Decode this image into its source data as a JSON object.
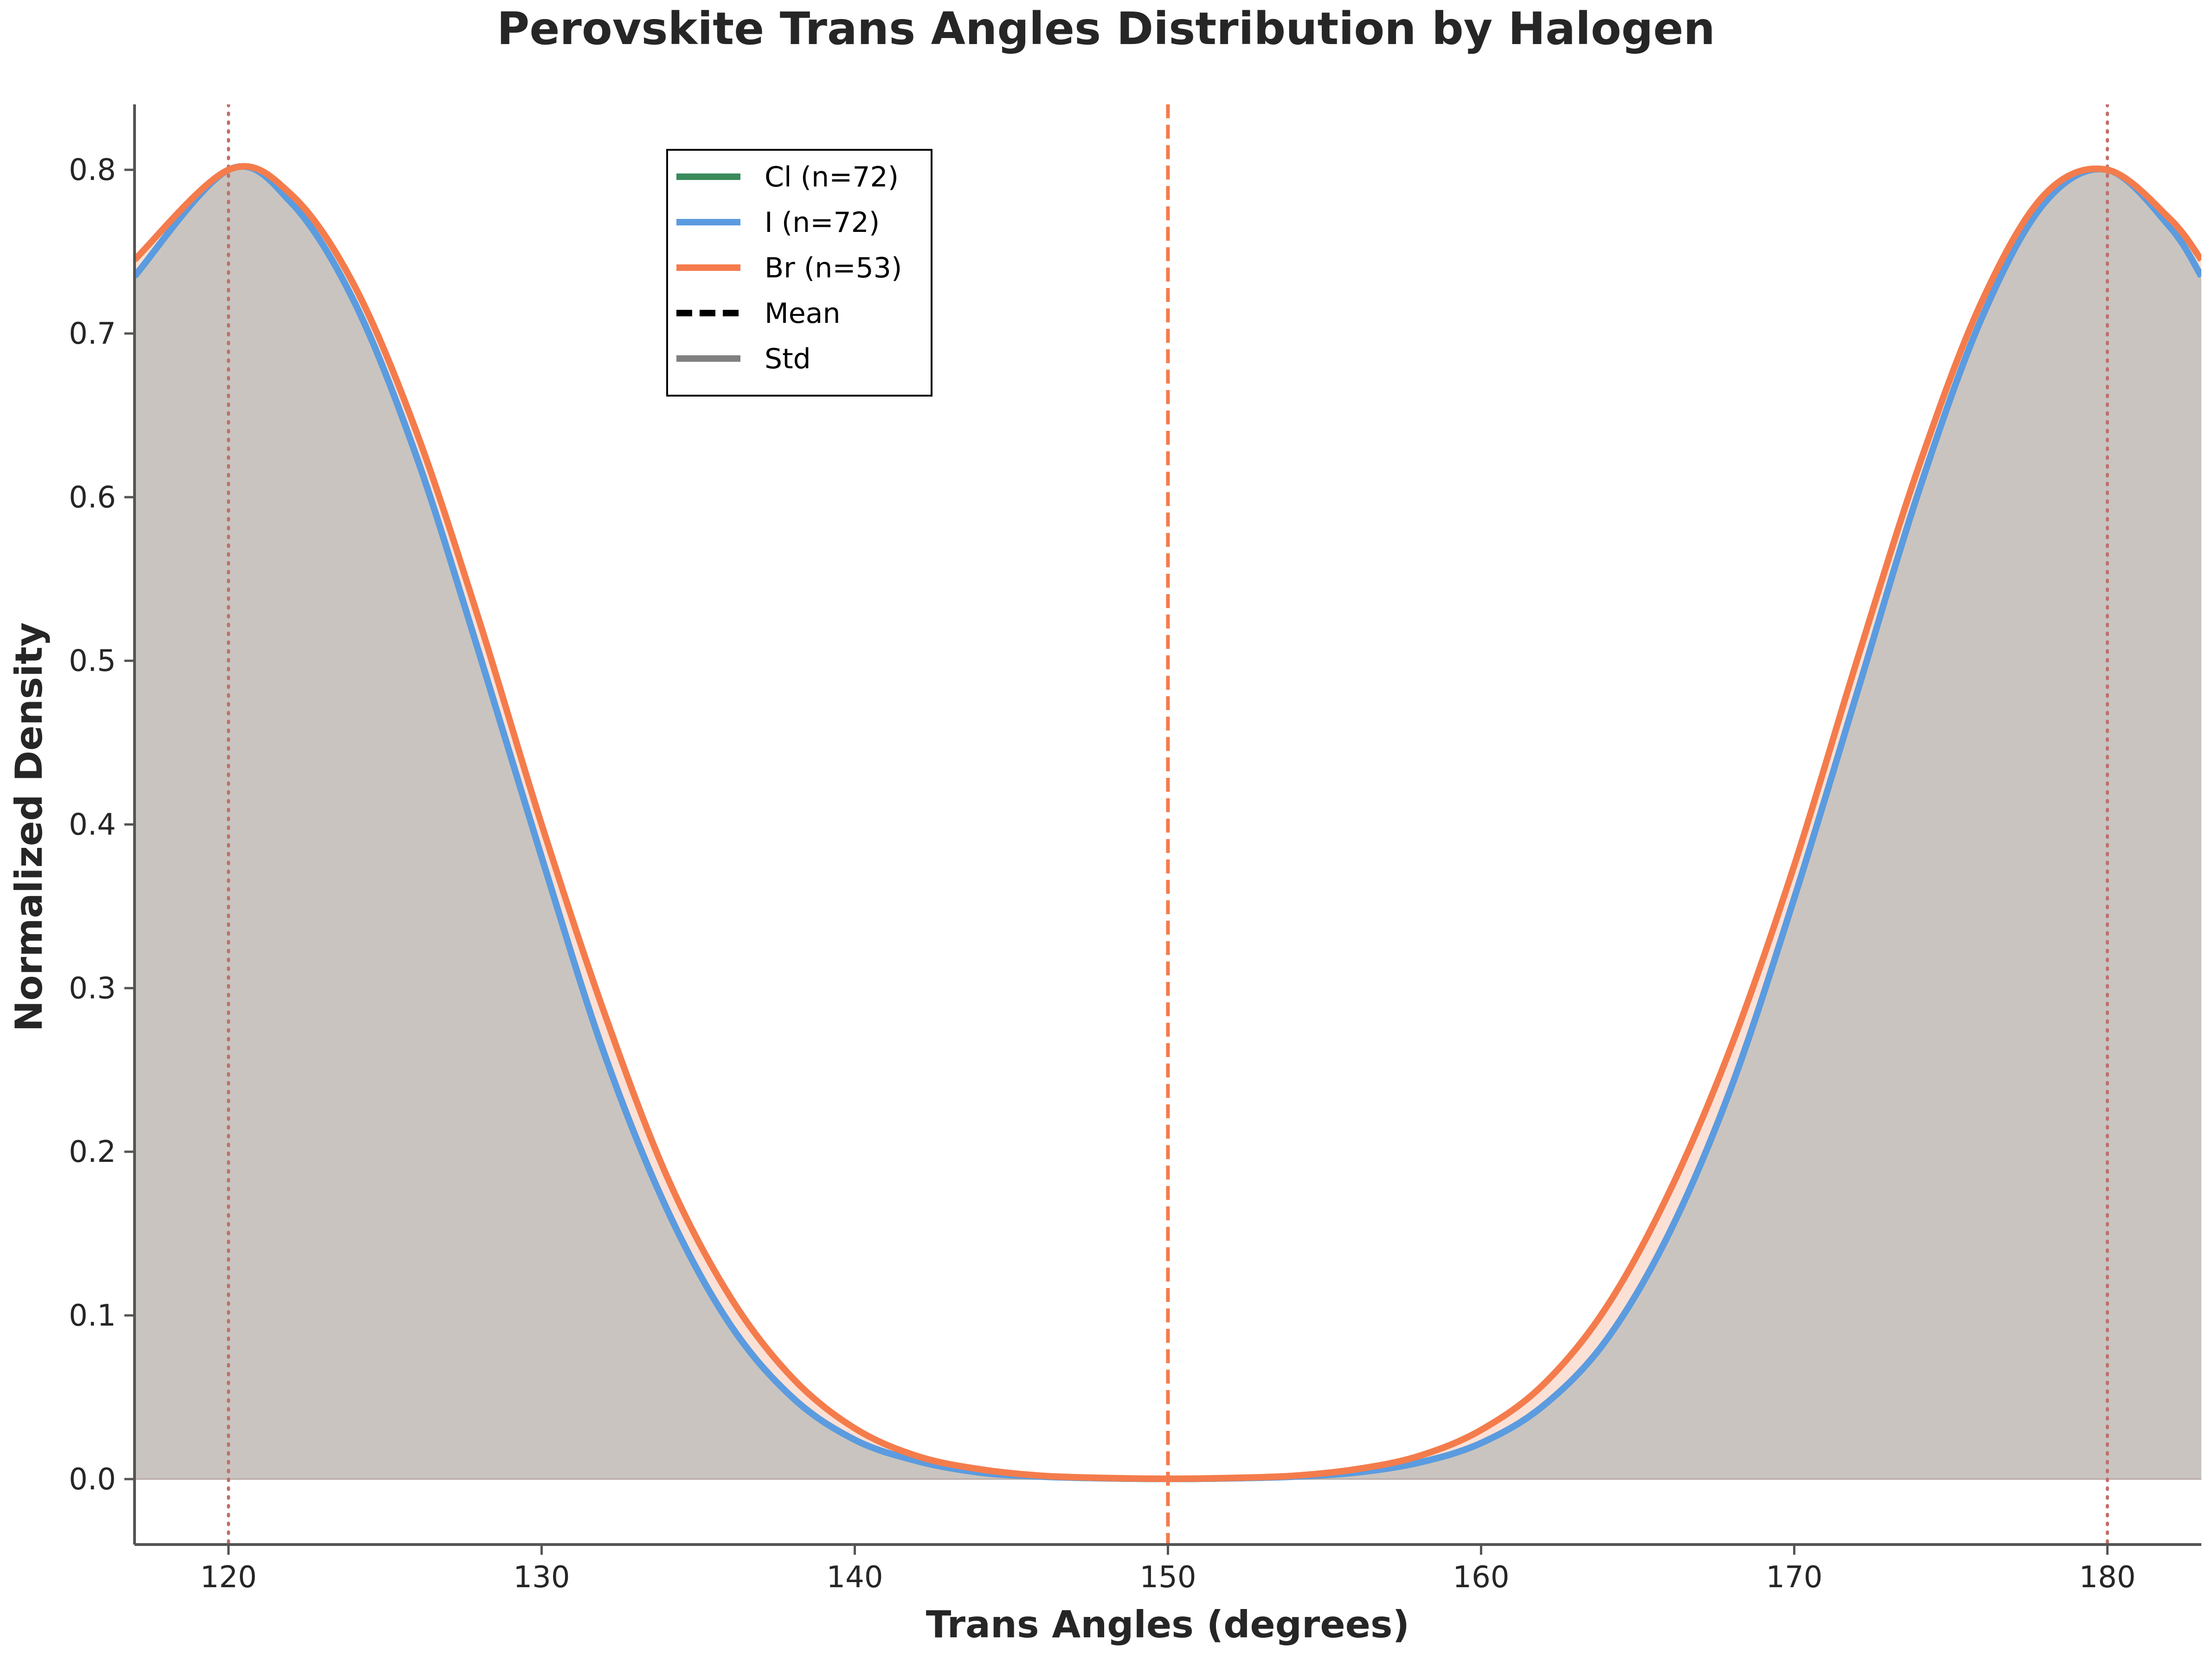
{
  "chart_data": {
    "type": "area",
    "title": "Perovskite Trans Angles Distribution by Halogen",
    "xlabel": "Trans Angles (degrees)",
    "ylabel": "Normalized Density",
    "xlim": [
      117,
      183
    ],
    "ylim": [
      -0.04,
      0.84
    ],
    "xticks": [
      120,
      130,
      140,
      150,
      160,
      170,
      180
    ],
    "yticks": [
      0.0,
      0.1,
      0.2,
      0.3,
      0.4,
      0.5,
      0.6,
      0.7,
      0.8
    ],
    "xtick_labels": [
      "120",
      "130",
      "140",
      "150",
      "160",
      "170",
      "180"
    ],
    "ytick_labels": [
      "0.0",
      "0.1",
      "0.2",
      "0.3",
      "0.4",
      "0.5",
      "0.6",
      "0.7",
      "0.8"
    ],
    "grid": false,
    "legend_position": "upper-left-center",
    "x": [
      117,
      120,
      122,
      124,
      126,
      128,
      130,
      132,
      134,
      136,
      138,
      140,
      142,
      144,
      146,
      148,
      150,
      152,
      154,
      156,
      158,
      160,
      162,
      164,
      166,
      168,
      170,
      172,
      174,
      176,
      178,
      180,
      182,
      183
    ],
    "series": [
      {
        "name": "Cl (n=72)",
        "color": "#3a8a5c",
        "values": [
          0.735,
          0.8,
          0.78,
          0.72,
          0.625,
          0.505,
          0.38,
          0.26,
          0.165,
          0.095,
          0.05,
          0.024,
          0.011,
          0.004,
          0.0015,
          0.0005,
          0.0001,
          0.0005,
          0.0015,
          0.004,
          0.01,
          0.022,
          0.045,
          0.085,
          0.15,
          0.24,
          0.355,
          0.48,
          0.605,
          0.71,
          0.78,
          0.8,
          0.765,
          0.735
        ]
      },
      {
        "name": "I (n=72)",
        "color": "#5b9be0",
        "values": [
          0.735,
          0.8,
          0.78,
          0.72,
          0.625,
          0.505,
          0.38,
          0.26,
          0.165,
          0.095,
          0.05,
          0.024,
          0.011,
          0.004,
          0.0015,
          0.0005,
          0.0001,
          0.0005,
          0.0015,
          0.004,
          0.01,
          0.022,
          0.045,
          0.085,
          0.15,
          0.24,
          0.355,
          0.48,
          0.605,
          0.71,
          0.78,
          0.8,
          0.765,
          0.735
        ]
      },
      {
        "name": "Br (n=53)",
        "color": "#f47c4c",
        "values": [
          0.745,
          0.8,
          0.785,
          0.73,
          0.64,
          0.525,
          0.4,
          0.285,
          0.185,
          0.112,
          0.062,
          0.031,
          0.014,
          0.006,
          0.002,
          0.0007,
          0.0002,
          0.0007,
          0.002,
          0.006,
          0.014,
          0.03,
          0.058,
          0.105,
          0.175,
          0.265,
          0.375,
          0.5,
          0.62,
          0.72,
          0.785,
          0.8,
          0.77,
          0.745
        ]
      }
    ],
    "legend": [
      {
        "label": "Cl (n=72)",
        "color": "#3a8a5c",
        "style": "solid"
      },
      {
        "label": "I (n=72)",
        "color": "#5b9be0",
        "style": "solid"
      },
      {
        "label": "Br (n=53)",
        "color": "#f47c4c",
        "style": "solid"
      },
      {
        "label": "Mean",
        "color": "#000000",
        "style": "dashed"
      },
      {
        "label": "Std",
        "color": "#808080",
        "style": "solid"
      }
    ],
    "mean_line": {
      "x": 150,
      "color": "#f47c4c",
      "style": "dashed"
    },
    "peak_lines": [
      {
        "x": 120,
        "color": "#c0706a",
        "style": "dotted"
      },
      {
        "x": 180,
        "color": "#c0706a",
        "style": "dotted"
      }
    ],
    "fill_colors": {
      "overlap": "#c9c4c0",
      "br_band": "#fbe0d6"
    }
  }
}
